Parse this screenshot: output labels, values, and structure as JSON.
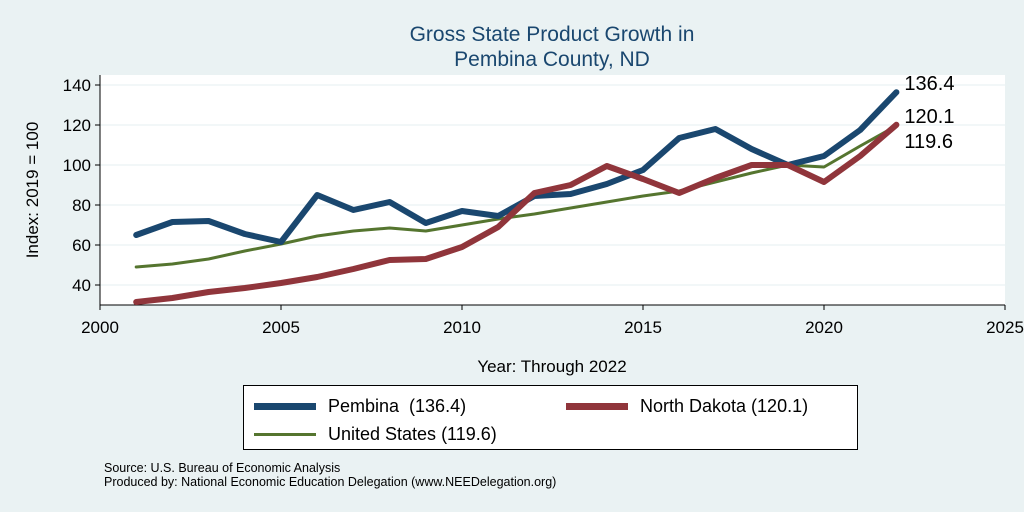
{
  "chart_data": {
    "type": "line",
    "title_lines": [
      "Gross State Product Growth in",
      "Pembina County, ND"
    ],
    "xlabel": "Year: Through 2022",
    "ylabel": "Index: 2019 = 100",
    "xlim": [
      2000,
      2025
    ],
    "ylim": [
      30,
      145
    ],
    "x_ticks": [
      2000,
      2005,
      2010,
      2015,
      2020,
      2025
    ],
    "y_ticks": [
      40,
      60,
      80,
      100,
      120,
      140
    ],
    "grid": true,
    "x": [
      2001,
      2002,
      2003,
      2004,
      2005,
      2006,
      2007,
      2008,
      2009,
      2010,
      2011,
      2012,
      2013,
      2014,
      2015,
      2016,
      2017,
      2018,
      2019,
      2020,
      2021,
      2022
    ],
    "series": [
      {
        "name": "Pembina",
        "legend": "Pembina  (136.4)",
        "end_label": "136.4",
        "color": "#1a476f",
        "values": [
          65,
          71.5,
          72,
          65.5,
          61.5,
          85,
          77.5,
          81.5,
          71,
          77,
          74.5,
          84.5,
          85.5,
          90.5,
          97.5,
          113.5,
          118,
          108,
          100,
          104.5,
          117.5,
          136.4
        ]
      },
      {
        "name": "North Dakota",
        "legend": "North Dakota (120.1)",
        "end_label": "120.1",
        "color": "#90353b",
        "values": [
          31.5,
          33.5,
          36.5,
          38.5,
          41,
          44,
          48,
          52.5,
          53,
          59,
          69,
          86,
          90,
          99.5,
          93,
          86,
          93.5,
          100,
          100,
          91.5,
          104.5,
          120.1
        ]
      },
      {
        "name": "United States",
        "legend": "United States (119.6)",
        "end_label": "119.6",
        "color": "#55752f",
        "values": [
          49,
          50.5,
          53,
          57,
          60.5,
          64.5,
          67,
          68.5,
          67,
          70,
          73,
          75.5,
          78.5,
          81.5,
          84.5,
          87,
          91.5,
          96,
          100,
          99,
          109.5,
          119.6
        ]
      }
    ],
    "legend_position": "bottom"
  },
  "footer": {
    "source": "Source: U.S. Bureau of Economic Analysis",
    "producer": "Produced by: National Economic Education Delegation (www.NEEDelegation.org)"
  }
}
